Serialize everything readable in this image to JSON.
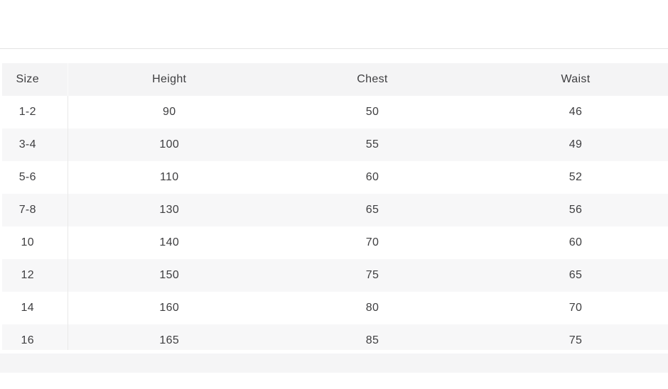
{
  "chart_data": {
    "type": "table",
    "columns": [
      "Size",
      "Height",
      "Chest",
      "Waist"
    ],
    "rows": [
      [
        "1-2",
        90,
        50,
        46
      ],
      [
        "3-4",
        100,
        55,
        49
      ],
      [
        "5-6",
        110,
        60,
        52
      ],
      [
        "7-8",
        130,
        65,
        56
      ],
      [
        "10",
        140,
        70,
        60
      ],
      [
        "12",
        150,
        75,
        65
      ],
      [
        "14",
        160,
        80,
        70
      ],
      [
        "16",
        165,
        85,
        75
      ]
    ]
  },
  "colors": {
    "header_bg": "#f4f4f5",
    "stripe_bg": "#f7f7f8",
    "footer_bg": "#f5f5f6",
    "rule": "#e3e3e3",
    "divider": "#e9e9e9",
    "text": "#3e3e40"
  }
}
